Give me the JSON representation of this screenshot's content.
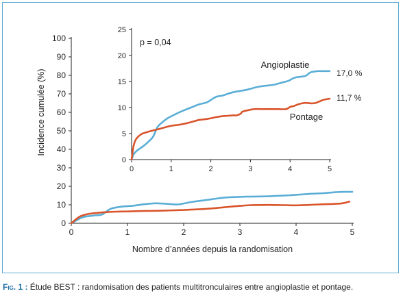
{
  "colors": {
    "angioplastie": "#5aaed6",
    "pontage": "#d9542b",
    "frame": "#5aa9cf",
    "caption_accent": "#1d6fa5"
  },
  "caption": {
    "label": "Fig. 1 :",
    "text": "Étude BEST : randomisation des patients multitronculaires entre angioplastie et pontage."
  },
  "chart_data": [
    {
      "type": "line",
      "xlabel": "Nombre d’années depuis la randomisation",
      "ylabel": "Incidence cumulée (%)",
      "xlim": [
        0,
        5
      ],
      "ylim": [
        0,
        100
      ],
      "xticks": [
        "0",
        "1",
        "2",
        "3",
        "4",
        "5"
      ],
      "yticks": [
        "0",
        "10",
        "20",
        "30",
        "40",
        "50",
        "60",
        "70",
        "80",
        "90",
        "100"
      ],
      "series": [
        {
          "name": "Angioplastie",
          "color": "#5aaed6",
          "x": [
            0,
            0.2,
            0.4,
            0.55,
            0.7,
            0.9,
            1.1,
            1.3,
            1.5,
            1.7,
            1.9,
            2.1,
            2.3,
            2.5,
            2.7,
            2.9,
            3.1,
            3.3,
            3.5,
            3.7,
            3.9,
            4.1,
            4.3,
            4.5,
            4.7,
            4.85,
            5.0
          ],
          "values": [
            0,
            3.2,
            4.2,
            4.8,
            7.8,
            9.0,
            9.5,
            10.3,
            10.8,
            10.5,
            10.2,
            11.3,
            12.2,
            13.0,
            13.8,
            14.2,
            14.4,
            14.5,
            14.6,
            14.9,
            15.2,
            15.6,
            16.0,
            16.3,
            16.8,
            17.0,
            17.0
          ]
        },
        {
          "name": "Pontage",
          "color": "#d9542b",
          "x": [
            0,
            0.15,
            0.3,
            0.45,
            0.6,
            0.8,
            1.0,
            1.2,
            1.4,
            1.6,
            1.8,
            2.0,
            2.2,
            2.4,
            2.6,
            2.8,
            3.0,
            3.2,
            3.4,
            3.6,
            3.8,
            4.0,
            4.2,
            4.4,
            4.6,
            4.8,
            4.95
          ],
          "values": [
            0,
            3.6,
            5.0,
            5.6,
            6.0,
            6.3,
            6.4,
            6.6,
            6.7,
            6.8,
            7.0,
            7.2,
            7.5,
            7.8,
            8.3,
            8.9,
            9.4,
            9.8,
            9.9,
            9.9,
            9.8,
            9.7,
            9.9,
            10.2,
            10.4,
            10.7,
            11.7
          ]
        }
      ]
    },
    {
      "type": "line",
      "xlim": [
        0,
        5
      ],
      "ylim": [
        0,
        25
      ],
      "xticks": [
        "0",
        "1",
        "2",
        "3",
        "4",
        "5"
      ],
      "yticks": [
        "0",
        "5",
        "10",
        "15",
        "20",
        "25"
      ],
      "annotation": "p = 0,04",
      "series": [
        {
          "name": "Angioplastie",
          "color": "#5aaed6",
          "end_label": "17,0 %",
          "x": [
            0,
            0.05,
            0.15,
            0.3,
            0.45,
            0.55,
            0.65,
            0.75,
            0.9,
            1.1,
            1.3,
            1.5,
            1.7,
            1.9,
            2.05,
            2.15,
            2.3,
            2.45,
            2.6,
            2.75,
            2.9,
            3.05,
            3.2,
            3.4,
            3.6,
            3.8,
            3.95,
            4.05,
            4.15,
            4.25,
            4.4,
            4.5,
            4.6,
            4.7,
            4.85,
            5.0
          ],
          "values": [
            0,
            1.0,
            1.8,
            2.6,
            3.6,
            4.5,
            6.2,
            7.0,
            7.9,
            8.7,
            9.4,
            10.0,
            10.6,
            11.0,
            11.7,
            12.1,
            12.3,
            12.7,
            13.0,
            13.2,
            13.4,
            13.7,
            14.0,
            14.2,
            14.4,
            14.8,
            15.1,
            15.5,
            15.8,
            15.9,
            16.1,
            16.7,
            16.9,
            17.0,
            17.0,
            17.0
          ]
        },
        {
          "name": "Pontage",
          "color": "#d9542b",
          "end_label": "11,7 %",
          "x": [
            0,
            0.05,
            0.12,
            0.25,
            0.4,
            0.55,
            0.7,
            0.85,
            1.0,
            1.2,
            1.4,
            1.55,
            1.7,
            1.9,
            2.1,
            2.25,
            2.4,
            2.55,
            2.65,
            2.75,
            2.8,
            2.95,
            3.1,
            3.3,
            3.5,
            3.7,
            3.9,
            4.0,
            4.1,
            4.2,
            4.3,
            4.4,
            4.55,
            4.65,
            4.75,
            4.85,
            5.0
          ],
          "values": [
            0,
            2.6,
            4.0,
            4.9,
            5.3,
            5.6,
            5.9,
            6.2,
            6.5,
            6.7,
            7.0,
            7.3,
            7.6,
            7.8,
            8.1,
            8.3,
            8.4,
            8.5,
            8.5,
            8.8,
            9.2,
            9.5,
            9.7,
            9.7,
            9.7,
            9.7,
            9.7,
            10.1,
            10.3,
            10.6,
            10.8,
            10.9,
            10.8,
            10.9,
            11.2,
            11.5,
            11.7
          ]
        }
      ]
    }
  ]
}
